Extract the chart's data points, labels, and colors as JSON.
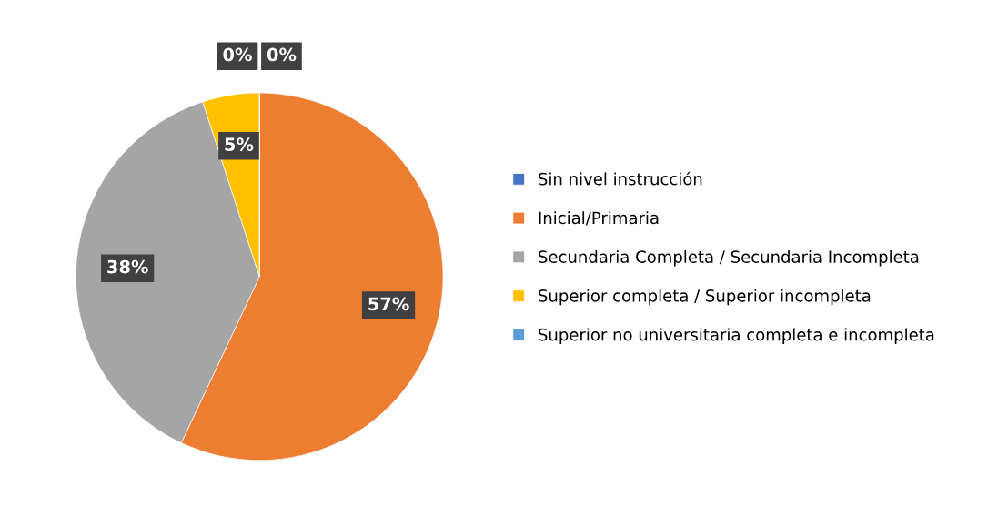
{
  "chart_data": {
    "type": "pie",
    "categories": [
      "Sin nivel instrucción",
      "Inicial/Primaria",
      "Secundaria Completa / Secundaria Incompleta",
      "Superior completa / Superior incompleta",
      "Superior no universitaria completa e incompleta"
    ],
    "values": [
      0,
      57,
      38,
      5,
      0
    ],
    "colors": [
      "#4472c4",
      "#ed7d31",
      "#a5a5a5",
      "#ffc000",
      "#5b9bd5"
    ],
    "value_labels": [
      "0%",
      "57%",
      "38%",
      "5%",
      "0%"
    ],
    "legend": "right"
  }
}
